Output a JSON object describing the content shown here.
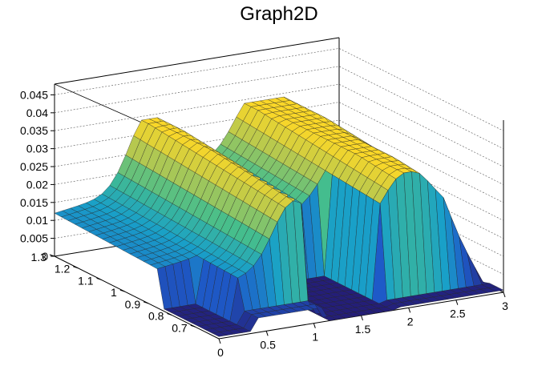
{
  "chart_data": {
    "type": "surface3d",
    "title": "Graph2D",
    "x_axis": {
      "range": [
        0,
        3
      ],
      "ticks": [
        "0",
        "0.5",
        "1",
        "1.5",
        "2",
        "2.5",
        "3"
      ],
      "values": [
        0,
        0.5,
        1,
        1.5,
        2,
        2.5,
        3
      ]
    },
    "y_axis": {
      "range": [
        0.6,
        1.3
      ],
      "ticks": [
        "0.7",
        "0.8",
        "0.9",
        "1",
        "1.1",
        "1.2",
        "1.3"
      ],
      "values": [
        0.7,
        0.8,
        0.9,
        1.0,
        1.1,
        1.2,
        1.3
      ]
    },
    "z_axis": {
      "range": [
        0,
        0.048
      ],
      "ticks": [
        "0",
        "0.005",
        "0.01",
        "0.015",
        "0.02",
        "0.025",
        "0.03",
        "0.035",
        "0.04",
        "0.045"
      ],
      "values": [
        0,
        0.005,
        0.01,
        0.015,
        0.02,
        0.025,
        0.03,
        0.035,
        0.04,
        0.045
      ]
    },
    "grid": true,
    "colormap": "viridis-like (blue-green-yellow)",
    "surface_profile": {
      "description": "z vs x along high-y edge and low-y edge",
      "x": [
        0,
        0.5,
        1.0,
        1.1,
        1.5,
        1.75,
        2.0,
        2.5,
        3.0
      ],
      "z_back_ridge": [
        0.012,
        0.016,
        0.03,
        0.031,
        0.025,
        0.018,
        0.033,
        0.033,
        0.0
      ],
      "z_front_cliff": [
        0.012,
        0.015,
        0.03,
        0.0,
        0.0,
        0.0,
        0.025,
        0.0,
        0.0
      ]
    }
  }
}
